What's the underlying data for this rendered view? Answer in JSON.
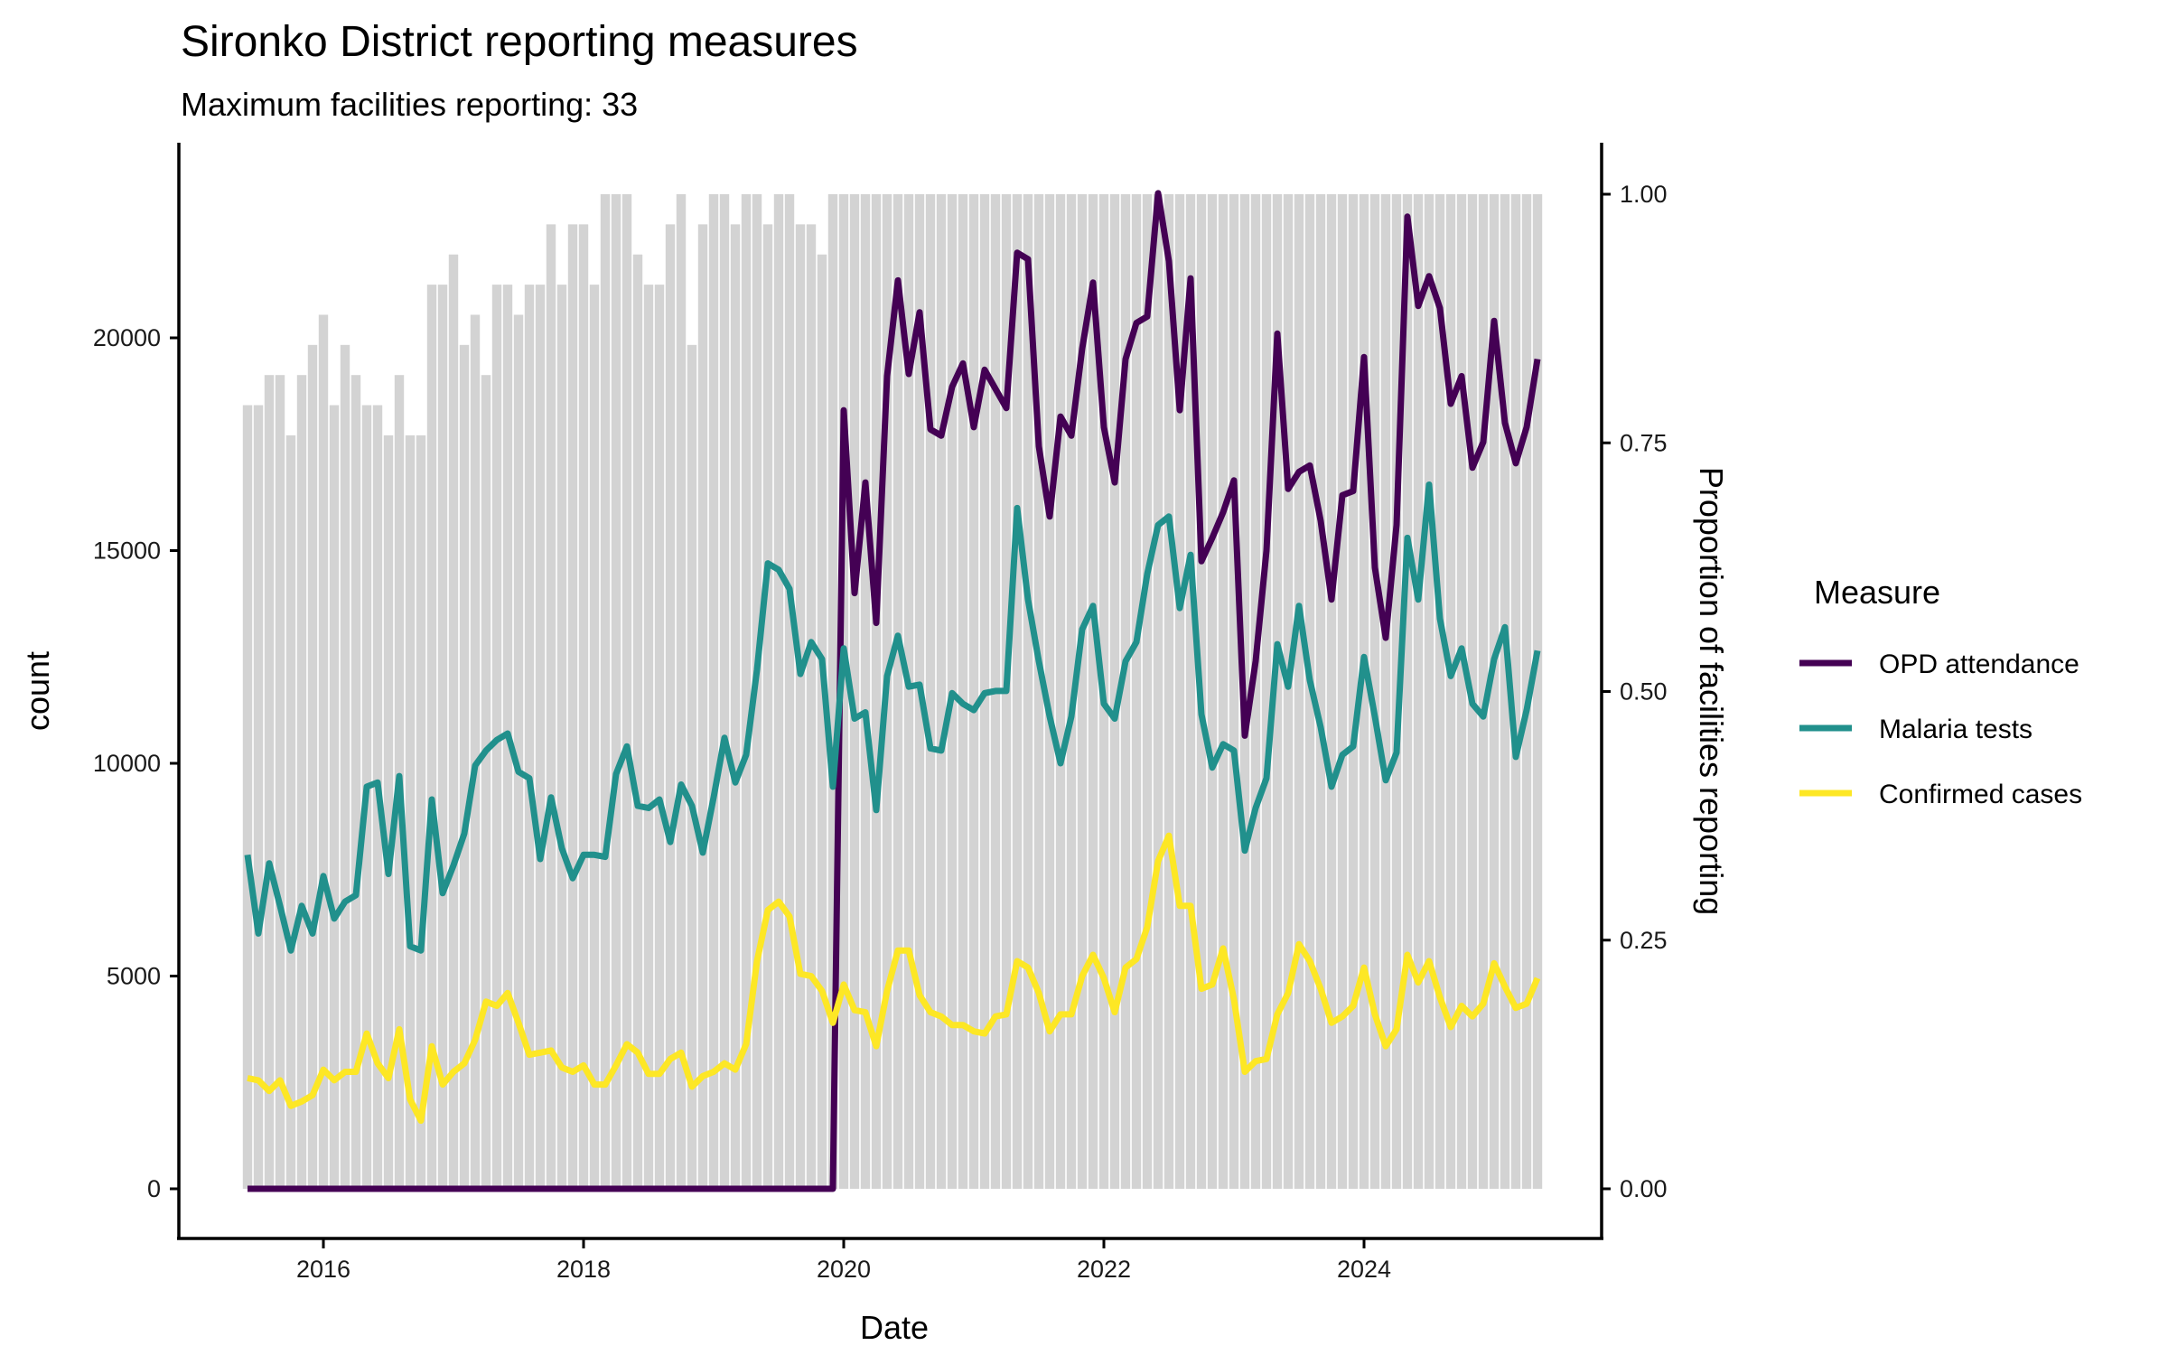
{
  "chart_data": {
    "type": "line",
    "title": "Sironko District reporting measures",
    "subtitle": "Maximum facilities reporting: 33",
    "xlabel": "Date",
    "ylabel": "count",
    "y2label": "Proportion of facilities reporting",
    "x_start": "2015-06",
    "x_end": "2025-05",
    "x_ticks": [
      "2016",
      "2018",
      "2020",
      "2022",
      "2024"
    ],
    "x_tick_years": [
      2016,
      2018,
      2020,
      2022,
      2024
    ],
    "ylim": [
      -1150,
      24600
    ],
    "y_ticks": [
      0,
      5000,
      10000,
      15000,
      20000
    ],
    "y_tick_labels": [
      "0",
      "5000",
      "10000",
      "15000",
      "20000"
    ],
    "y2lim": [
      -0.05,
      1.05
    ],
    "y2_ticks": [
      0,
      0.25,
      0.5,
      0.75,
      1.0
    ],
    "y2_tick_labels": [
      "0.00",
      "0.25",
      "0.50",
      "0.75",
      "1.00"
    ],
    "grid": false,
    "legend": {
      "title": "Measure",
      "position": "right",
      "entries": [
        "OPD attendance",
        "Malaria tests",
        "Confirmed cases"
      ]
    },
    "max_facilities": 33,
    "facilities_reporting": [
      26,
      26,
      27,
      27,
      25,
      27,
      28,
      29,
      26,
      28,
      27,
      26,
      26,
      25,
      27,
      25,
      25,
      30,
      30,
      31,
      28,
      29,
      27,
      30,
      30,
      29,
      30,
      30,
      32,
      30,
      32,
      32,
      30,
      33,
      33,
      33,
      31,
      30,
      30,
      32,
      33,
      28,
      32,
      33,
      33,
      32,
      33,
      33,
      32,
      33,
      33,
      32,
      32,
      31,
      33,
      33,
      33,
      33,
      33,
      33,
      33,
      33,
      33,
      33,
      33,
      33,
      33,
      33,
      33,
      33,
      33,
      33,
      33,
      33,
      33,
      33,
      33,
      33,
      33,
      33,
      33,
      33,
      33,
      33,
      33,
      33,
      33,
      33,
      33,
      33,
      33,
      33,
      33,
      33,
      33,
      33,
      33,
      33,
      33,
      33,
      33,
      33,
      33,
      33,
      33,
      33,
      33,
      33,
      33,
      33,
      33,
      33,
      33,
      33,
      33,
      33,
      33,
      33,
      33,
      33
    ],
    "series": [
      {
        "name": "OPD attendance",
        "color": "#440154",
        "values": [
          0,
          0,
          0,
          0,
          0,
          0,
          0,
          0,
          0,
          0,
          0,
          0,
          0,
          0,
          0,
          0,
          0,
          0,
          0,
          0,
          0,
          0,
          0,
          0,
          0,
          0,
          0,
          0,
          0,
          0,
          0,
          0,
          0,
          0,
          0,
          0,
          0,
          0,
          0,
          0,
          0,
          0,
          0,
          0,
          0,
          0,
          0,
          0,
          0,
          0,
          0,
          0,
          0,
          0,
          0,
          18300,
          14000,
          16600,
          13300,
          19100,
          21350,
          19150,
          20600,
          17850,
          17700,
          18850,
          19400,
          17900,
          19250,
          18800,
          18350,
          22000,
          21850,
          17450,
          15800,
          18150,
          17700,
          19750,
          21300,
          17900,
          16600,
          19500,
          20350,
          20500,
          23400,
          21800,
          18300,
          21400,
          14750,
          15300,
          15900,
          16650,
          10650,
          12400,
          15000,
          20100,
          16450,
          16850,
          17000,
          15700,
          13850,
          16300,
          16400,
          19550,
          14600,
          12950,
          15600,
          22850,
          20750,
          21450,
          20700,
          18450,
          19100,
          16950,
          17550,
          20400,
          18000,
          17050,
          17900,
          19500
        ]
      },
      {
        "name": "Malaria tests",
        "color": "#21908C",
        "values": [
          7850,
          6000,
          7650,
          6650,
          5600,
          6650,
          6000,
          7350,
          6350,
          6750,
          6900,
          9450,
          9550,
          7400,
          9700,
          5700,
          5600,
          9150,
          6950,
          7600,
          8350,
          9950,
          10300,
          10550,
          10700,
          9800,
          9650,
          7750,
          9200,
          8000,
          7300,
          7850,
          7850,
          7800,
          9750,
          10400,
          9000,
          8950,
          9150,
          8150,
          9500,
          9000,
          7900,
          9200,
          10600,
          9550,
          10200,
          12200,
          14700,
          14550,
          14100,
          12100,
          12850,
          12450,
          9450,
          12700,
          11050,
          11200,
          8900,
          12050,
          13000,
          11800,
          11850,
          10350,
          10300,
          11650,
          11400,
          11250,
          11650,
          11700,
          11700,
          16000,
          13850,
          12400,
          11100,
          10000,
          11100,
          13150,
          13700,
          11400,
          11050,
          12400,
          12850,
          14450,
          15600,
          15800,
          13650,
          14900,
          11150,
          9900,
          10450,
          10300,
          7950,
          8950,
          9650,
          12800,
          11800,
          13700,
          11950,
          10850,
          9450,
          10200,
          10400,
          12500,
          11100,
          9600,
          10250,
          15300,
          13850,
          16550,
          13400,
          12050,
          12700,
          11400,
          11100,
          12450,
          13200,
          10150,
          11250,
          12650
        ]
      },
      {
        "name": "Confirmed cases",
        "color": "#FDE725",
        "values": [
          2600,
          2550,
          2300,
          2550,
          1950,
          2050,
          2200,
          2800,
          2550,
          2750,
          2750,
          3650,
          2950,
          2600,
          3750,
          2100,
          1600,
          3350,
          2450,
          2750,
          2950,
          3500,
          4400,
          4300,
          4600,
          3900,
          3150,
          3200,
          3250,
          2850,
          2750,
          2900,
          2450,
          2450,
          2900,
          3400,
          3200,
          2700,
          2700,
          3050,
          3200,
          2400,
          2650,
          2750,
          2950,
          2800,
          3400,
          5350,
          6550,
          6750,
          6400,
          5050,
          5000,
          4650,
          3900,
          4800,
          4200,
          4150,
          3350,
          4650,
          5600,
          5600,
          4550,
          4150,
          4050,
          3850,
          3850,
          3700,
          3650,
          4050,
          4100,
          5350,
          5200,
          4600,
          3700,
          4100,
          4100,
          5000,
          5500,
          4950,
          4150,
          5200,
          5400,
          6150,
          7700,
          8300,
          6650,
          6650,
          4700,
          4800,
          5650,
          4450,
          2750,
          3000,
          3050,
          4100,
          4600,
          5750,
          5350,
          4700,
          3900,
          4050,
          4300,
          5200,
          4100,
          3350,
          3750,
          5500,
          4850,
          5350,
          4500,
          3800,
          4300,
          4050,
          4350,
          5300,
          4750,
          4250,
          4350,
          4950
        ]
      }
    ],
    "bar_color": "#D3D3D3"
  }
}
